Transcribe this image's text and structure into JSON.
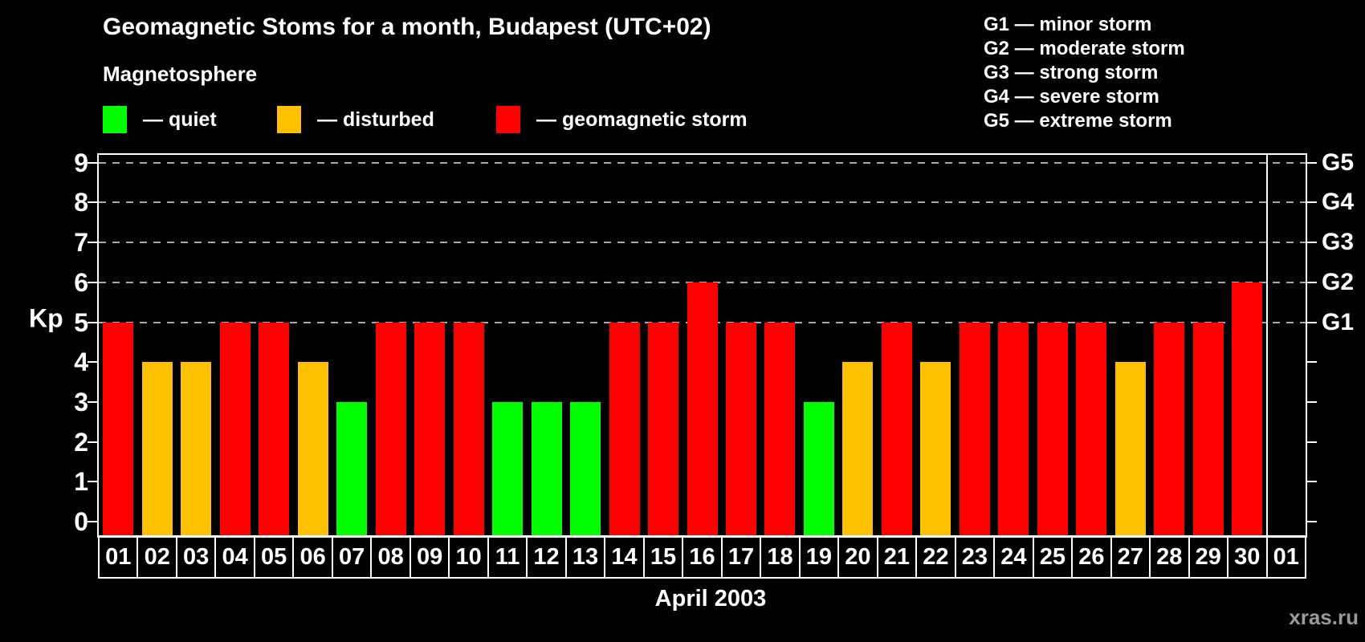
{
  "page": {
    "background": "#000000"
  },
  "header": {
    "title": "Geomagnetic Stoms for a month, Budapest (UTC+02)"
  },
  "legend": {
    "heading": "Magnetosphere",
    "items": [
      {
        "status": "quiet",
        "label": "— quiet",
        "color": "#00FF00"
      },
      {
        "status": "disturbed",
        "label": "— disturbed",
        "color": "#FFC000"
      },
      {
        "status": "storm",
        "label": "— geomagnetic storm",
        "color": "#FF0000"
      }
    ]
  },
  "g_legend": {
    "lines": [
      "G1 — minor storm",
      "G2 — moderate storm",
      "G3 — strong storm",
      "G4 — severe storm",
      "G5 — extreme storm"
    ]
  },
  "watermark": {
    "text": "xras.ru",
    "color": "#9A9A9A"
  },
  "chart_data": {
    "type": "bar",
    "title": "Geomagnetic Stoms for a month, Budapest (UTC+02)",
    "xlabel": "April 2003",
    "ylabel": "Kp",
    "ylim": [
      0,
      9.2
    ],
    "yticks": [
      0,
      1,
      2,
      3,
      4,
      5,
      6,
      7,
      8,
      9
    ],
    "gridlines_at": [
      5,
      6,
      7,
      8,
      9
    ],
    "grid_color": "#A8A8A8",
    "axis_color": "#FFFFFF",
    "legend_position": "top",
    "right_axis_labels": [
      {
        "kp": 5,
        "label": "G1"
      },
      {
        "kp": 6,
        "label": "G2"
      },
      {
        "kp": 7,
        "label": "G3"
      },
      {
        "kp": 8,
        "label": "G4"
      },
      {
        "kp": 9,
        "label": "G5"
      }
    ],
    "status_colors": {
      "quiet": "#00FF00",
      "disturbed": "#FFC000",
      "storm": "#FF0000"
    },
    "bars": [
      {
        "day": "01",
        "kp": 5,
        "status": "storm"
      },
      {
        "day": "02",
        "kp": 4,
        "status": "disturbed"
      },
      {
        "day": "03",
        "kp": 4,
        "status": "disturbed"
      },
      {
        "day": "04",
        "kp": 5,
        "status": "storm"
      },
      {
        "day": "05",
        "kp": 5,
        "status": "storm"
      },
      {
        "day": "06",
        "kp": 4,
        "status": "disturbed"
      },
      {
        "day": "07",
        "kp": 3,
        "status": "quiet"
      },
      {
        "day": "08",
        "kp": 5,
        "status": "storm"
      },
      {
        "day": "09",
        "kp": 5,
        "status": "storm"
      },
      {
        "day": "10",
        "kp": 5,
        "status": "storm"
      },
      {
        "day": "11",
        "kp": 3,
        "status": "quiet"
      },
      {
        "day": "12",
        "kp": 3,
        "status": "quiet"
      },
      {
        "day": "13",
        "kp": 3,
        "status": "quiet"
      },
      {
        "day": "14",
        "kp": 5,
        "status": "storm"
      },
      {
        "day": "15",
        "kp": 5,
        "status": "storm"
      },
      {
        "day": "16",
        "kp": 6,
        "status": "storm"
      },
      {
        "day": "17",
        "kp": 5,
        "status": "storm"
      },
      {
        "day": "18",
        "kp": 5,
        "status": "storm"
      },
      {
        "day": "19",
        "kp": 3,
        "status": "quiet"
      },
      {
        "day": "20",
        "kp": 4,
        "status": "disturbed"
      },
      {
        "day": "21",
        "kp": 5,
        "status": "storm"
      },
      {
        "day": "22",
        "kp": 4,
        "status": "disturbed"
      },
      {
        "day": "23",
        "kp": 5,
        "status": "storm"
      },
      {
        "day": "24",
        "kp": 5,
        "status": "storm"
      },
      {
        "day": "25",
        "kp": 5,
        "status": "storm"
      },
      {
        "day": "26",
        "kp": 5,
        "status": "storm"
      },
      {
        "day": "27",
        "kp": 4,
        "status": "disturbed"
      },
      {
        "day": "28",
        "kp": 5,
        "status": "storm"
      },
      {
        "day": "29",
        "kp": 5,
        "status": "storm"
      },
      {
        "day": "30",
        "kp": 6,
        "status": "storm"
      },
      {
        "day": "01",
        "kp": null,
        "status": null
      }
    ]
  }
}
